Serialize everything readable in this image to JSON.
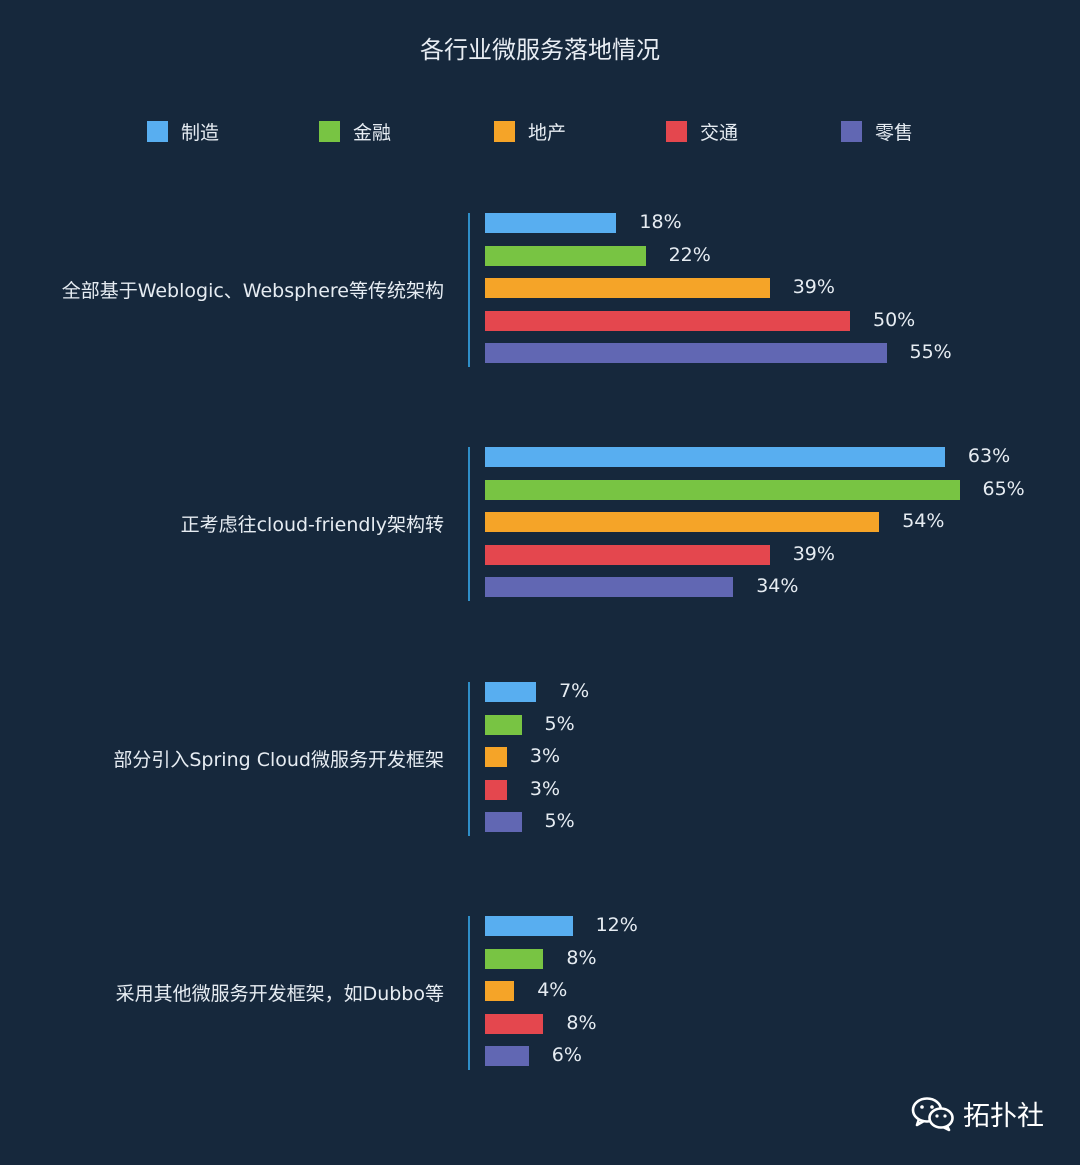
{
  "chart_data": {
    "type": "bar",
    "orientation": "horizontal",
    "title": "各行业微服务落地情况",
    "categories": [
      "全部基于Weblogic、Websphere等传统架构",
      "正考虑往cloud-friendly架构转",
      "部分引入Spring Cloud微服务开发框架",
      "采用其他微服务开发框架，如Dubbo等"
    ],
    "series": [
      {
        "name": "制造",
        "color": "#58aef0",
        "values": [
          18,
          63,
          7,
          12
        ],
        "labels": [
          "18%",
          "63%",
          "7%",
          "12%"
        ]
      },
      {
        "name": "金融",
        "color": "#78c443",
        "values": [
          22,
          65,
          5,
          8
        ],
        "labels": [
          "22%",
          "65%",
          "5%",
          "8%"
        ]
      },
      {
        "name": "地产",
        "color": "#f5a428",
        "values": [
          39,
          54,
          3,
          4
        ],
        "labels": [
          "39%",
          "54%",
          "3%",
          "4%"
        ]
      },
      {
        "name": "交通",
        "color": "#e4474e",
        "values": [
          50,
          39,
          3,
          8
        ],
        "labels": [
          "50%",
          "39%",
          "3%",
          "8%"
        ]
      },
      {
        "name": "零售",
        "color": "#6167b3",
        "values": [
          55,
          34,
          5,
          6
        ],
        "labels": [
          "55%",
          "34%",
          "5%",
          "6%"
        ]
      }
    ],
    "unit": "%",
    "legend_position": "top",
    "grid": false
  },
  "watermark": {
    "icon": "wechat-icon",
    "text": "拓扑社"
  },
  "colors": {
    "background": "#16283c",
    "axis": "#2f8ec7",
    "text": "#e6ecf2"
  }
}
